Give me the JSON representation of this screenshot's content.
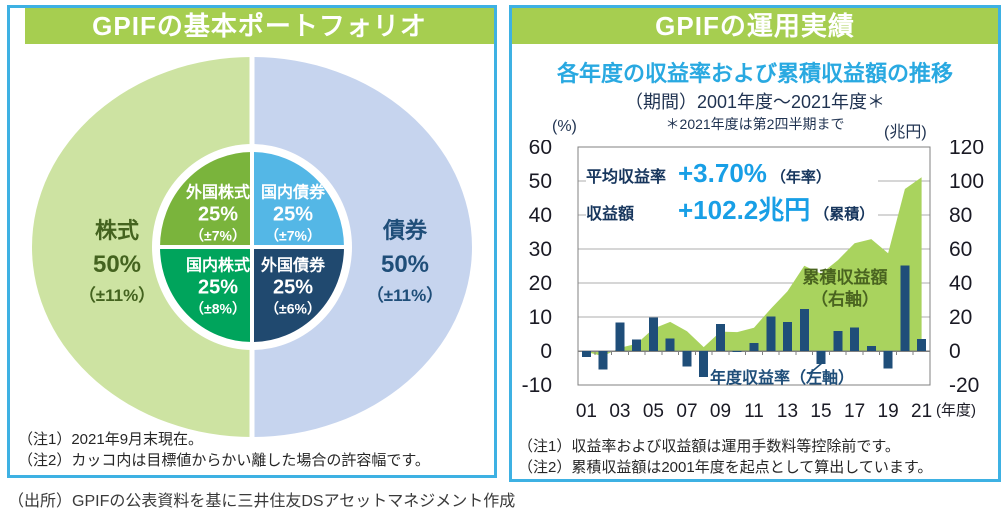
{
  "colors": {
    "panel_border_blue": "#3EB1E3",
    "banner_green": "#A6CE50",
    "subtitle_cyan": "#29A9E1",
    "accent_cyan": "#189FE6",
    "navy": "#1F4E79",
    "bar_navy": "#1F4E79",
    "area_green": "#A9D35E",
    "area_label_green": "#4A6420",
    "grid_gray": "#ADADAD",
    "axis_gray": "#808080",
    "donut_outer_stock_green": "#CDE3A2",
    "donut_outer_bond_blue": "#C6D4EE",
    "donut_foreign_stock_olive": "#7AB43C",
    "donut_domestic_bond_sky": "#54B7E6",
    "donut_domestic_stock_green": "#00A45C",
    "donut_foreign_bond_navy": "#20496F",
    "stock_text_green": "#44631F"
  },
  "left_panel": {
    "title": "GPIFの基本ポートフォリオ",
    "donut": {
      "outer_left": {
        "label": "株式",
        "pct": "50%",
        "range": "（±11%）"
      },
      "outer_right": {
        "label": "債券",
        "pct": "50%",
        "range": "（±11%）"
      },
      "inner_top_left": {
        "label": "外国株式",
        "pct": "25%",
        "range": "（±7%）"
      },
      "inner_top_right": {
        "label": "国内債券",
        "pct": "25%",
        "range": "（±7%）"
      },
      "inner_bottom_left": {
        "label": "国内株式",
        "pct": "25%",
        "range": "（±8%）"
      },
      "inner_bottom_right": {
        "label": "外国債券",
        "pct": "25%",
        "range": "（±6%）"
      }
    },
    "notes": {
      "note1": "（注1）2021年9月末現在。",
      "note2": "（注2）カッコ内は目標値からかい離した場合の許容幅です。"
    }
  },
  "right_panel": {
    "title": "GPIFの運用実績",
    "subtitle": "各年度の収益率および累積収益額の推移",
    "period_line": "（期間）2001年度～2021年度＊",
    "period_note": "＊2021年度は第2四半期まで",
    "left_axis_unit": "(%)",
    "right_axis_unit": "(兆円)",
    "x_axis_suffix": "(年度)",
    "stats": {
      "avg_label": "平均収益率",
      "avg_value": "+3.70%",
      "avg_unit": "（年率）",
      "amount_label": "収益額",
      "amount_value": "+102.2兆円",
      "amount_unit": "（累積）"
    },
    "area_series_label_line1": "累積収益額",
    "area_series_label_line2": "（右軸）",
    "bar_series_label": "年度収益率（左軸）",
    "notes": {
      "note1": "（注1）収益率および収益額は運用手数料等控除前です。",
      "note2": "（注2）累積収益額は2001年度を起点として算出しています。"
    }
  },
  "source_line": "（出所）GPIFの公表資料を基に三井住友DSアセットマネジメント作成",
  "chart_data": {
    "type": "combo-bar-area",
    "x": [
      "01",
      "02",
      "03",
      "04",
      "05",
      "06",
      "07",
      "08",
      "09",
      "10",
      "11",
      "12",
      "13",
      "14",
      "15",
      "16",
      "17",
      "18",
      "19",
      "20",
      "21"
    ],
    "x_labeled_every": 2,
    "series": [
      {
        "name": "年度収益率（左軸）",
        "type": "bar",
        "axis": "left",
        "unit": "%",
        "values": [
          -1.8,
          -5.4,
          8.4,
          3.4,
          9.9,
          3.7,
          -4.6,
          -7.6,
          7.9,
          -0.3,
          2.3,
          10.2,
          8.6,
          12.3,
          -3.8,
          5.9,
          6.9,
          1.5,
          -5.2,
          25.1,
          3.5
        ]
      },
      {
        "name": "累積収益額（右軸）",
        "type": "area",
        "axis": "right",
        "unit": "兆円",
        "values": [
          -0.6,
          -3.0,
          1.8,
          4.3,
          13.2,
          17.1,
          11.6,
          2.3,
          11.4,
          11.1,
          13.7,
          24.9,
          35.1,
          50.2,
          45.4,
          53.4,
          63.4,
          65.8,
          57.5,
          95.3,
          102.2
        ]
      }
    ],
    "left_axis": {
      "label": "(%)",
      "min": -10,
      "max": 60,
      "tick_step": 10
    },
    "right_axis": {
      "label": "(兆円)",
      "min": -20,
      "max": 120,
      "tick_step": 20
    },
    "grid": true,
    "legend_position": "inside-plot"
  }
}
